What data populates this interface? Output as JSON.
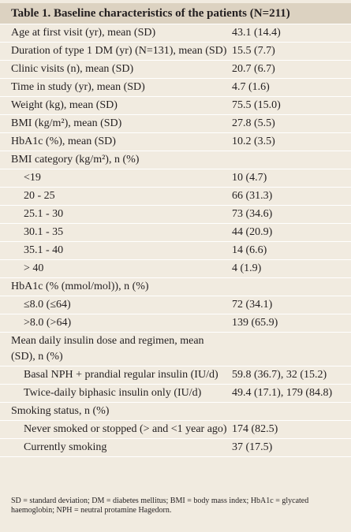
{
  "table": {
    "title": "Table 1. Baseline characteristics of the patients (N=211)",
    "rows": [
      [
        "Age at first visit (yr), mean (SD)",
        "43.1 (14.4)"
      ],
      [
        "Duration of type 1 DM (yr) (N=131), mean (SD)",
        "15.5 (7.7)"
      ],
      [
        "Clinic visits (n), mean (SD)",
        "20.7 (6.7)"
      ],
      [
        "Time in study (yr), mean (SD)",
        "4.7 (1.6)"
      ],
      [
        "Weight (kg), mean (SD)",
        "75.5 (15.0)"
      ],
      [
        "BMI (kg/m²), mean (SD)",
        "27.8 (5.5)"
      ],
      [
        "HbA1c (%), mean (SD)",
        "10.2 (3.5)"
      ],
      [
        "BMI category (kg/m²), n (%)"
      ],
      [
        "<19",
        "10 (4.7)"
      ],
      [
        "20 - 25",
        "66 (31.3)"
      ],
      [
        "25.1 - 30",
        "73 (34.6)"
      ],
      [
        "30.1 - 35",
        "44 (20.9)"
      ],
      [
        "35.1 - 40",
        "14 (6.6)"
      ],
      [
        "> 40",
        "4 (1.9)"
      ],
      [
        "HbA1c (% (mmol/mol)), n (%)"
      ],
      [
        "≤8.0 (≤64)",
        "72 (34.1)"
      ],
      [
        ">8.0 (>64)",
        "139 (65.9)"
      ],
      [
        "Mean daily insulin dose and regimen, mean (SD), n (%)"
      ],
      [
        "Basal NPH + prandial regular insulin (IU/d)",
        "59.8 (36.7), 32 (15.2)"
      ],
      [
        "Twice-daily biphasic insulin only (IU/d)",
        "49.4 (17.1), 179 (84.8)"
      ],
      [
        "Smoking status, n (%)"
      ],
      [
        "Never smoked or stopped (> and <1 year ago)",
        "174 (82.5)"
      ],
      [
        "Currently smoking",
        "37 (17.5)"
      ]
    ],
    "footnote": "SD = standard deviation; DM = diabetes mellitus; BMI = body mass index; HbA1c = glycated haemoglobin; NPH = neutral protamine Hagedorn."
  }
}
